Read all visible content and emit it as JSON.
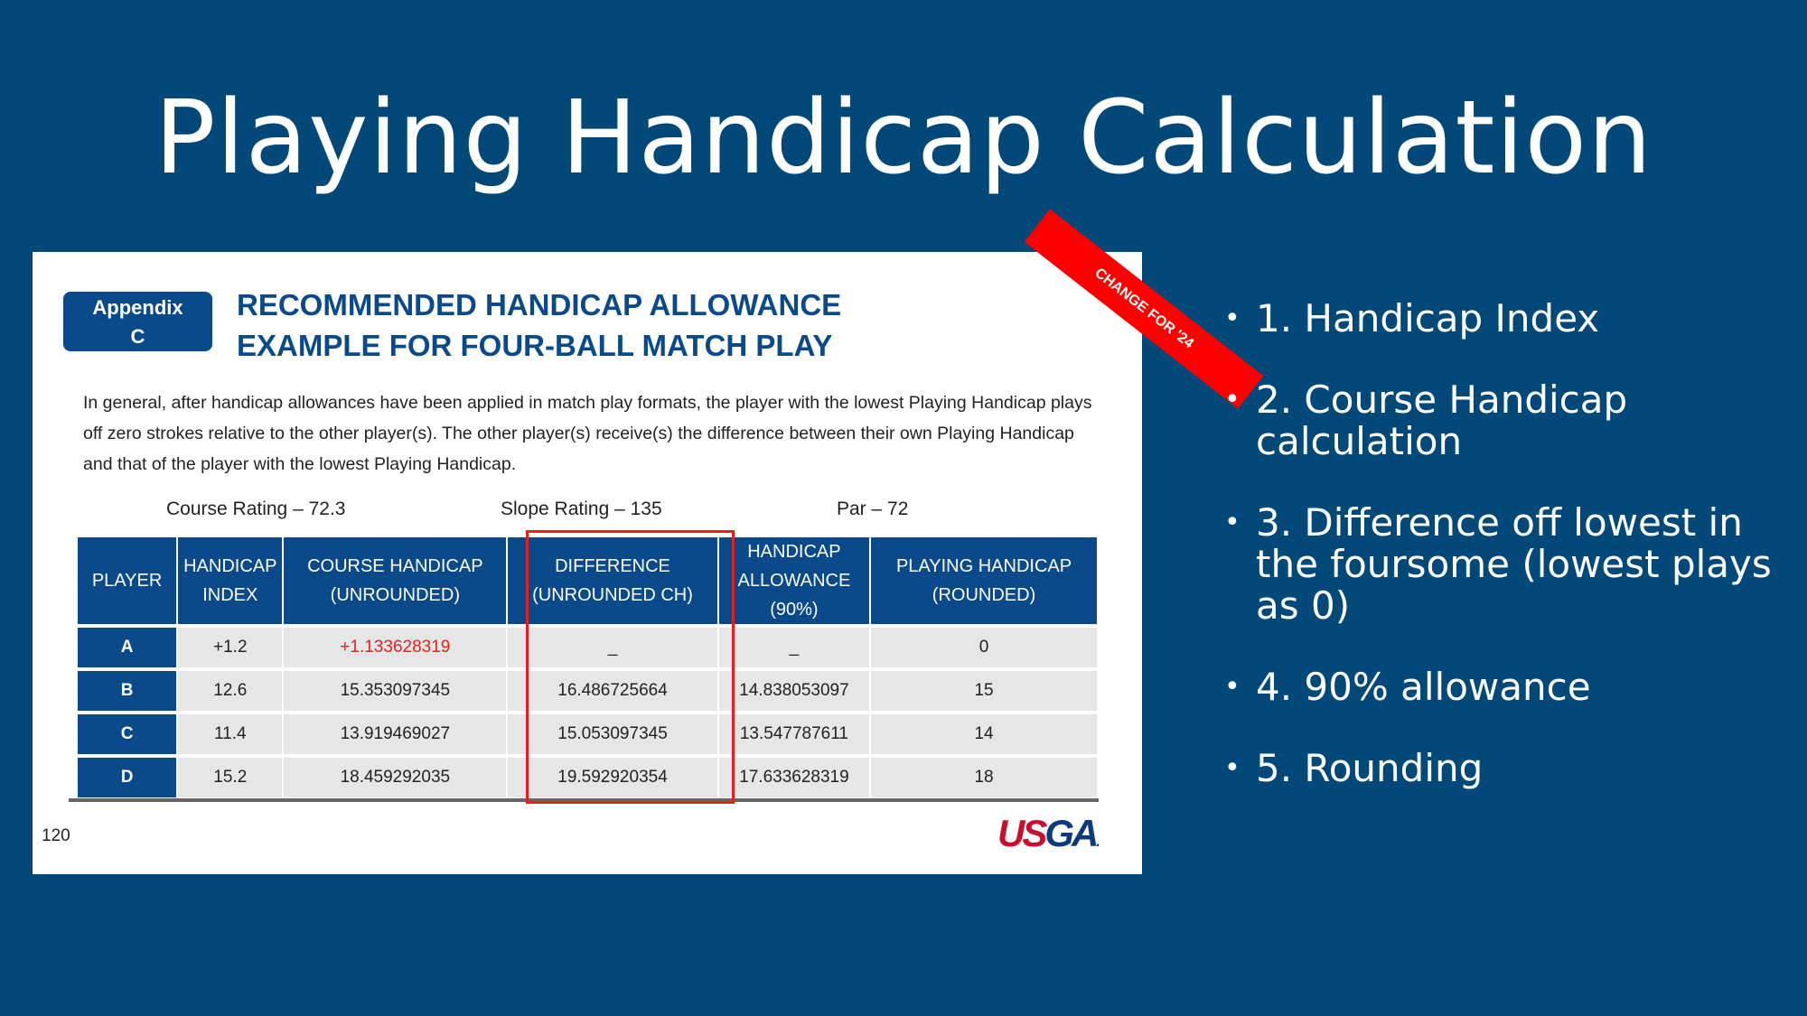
{
  "title": "Playing Handicap Calculation",
  "panel": {
    "ribbon": "CHANGE FOR '24",
    "appendix": [
      "Appendix",
      "C"
    ],
    "heading": [
      "RECOMMENDED HANDICAP ALLOWANCE",
      "EXAMPLE FOR FOUR-BALL MATCH PLAY"
    ],
    "intro": "In general, after handicap allowances have been applied in match play formats, the player with the lowest Playing Handicap plays off zero strokes relative to the other player(s).  The other player(s) receive(s) the difference between their own Playing Handicap and that of the player with the lowest Playing Handicap.",
    "course_rating": "Course Rating – 72.3",
    "slope_rating": "Slope Rating – 135",
    "par": "Par – 72",
    "headers": [
      [
        "PLAYER"
      ],
      [
        "HANDICAP",
        "INDEX"
      ],
      [
        "COURSE HANDICAP",
        "(UNROUNDED)"
      ],
      [
        "DIFFERENCE",
        "(UNROUNDED CH)"
      ],
      [
        "HANDICAP",
        "ALLOWANCE",
        "(90%)"
      ],
      [
        "PLAYING HANDICAP",
        "(ROUNDED)"
      ]
    ],
    "rows": [
      [
        "A",
        "+1.2",
        "+1.133628319",
        "_",
        "_",
        "0"
      ],
      [
        "B",
        "12.6",
        "15.353097345",
        "16.486725664",
        "14.838053097",
        "15"
      ],
      [
        "C",
        "11.4",
        "13.919469027",
        "15.053097345",
        "13.547787611",
        "14"
      ],
      [
        "D",
        "15.2",
        "18.459292035",
        "19.592920354",
        "17.633628319",
        "18"
      ]
    ],
    "page_number": "120",
    "logo": "USGA",
    "highlight_color": "#e52020"
  },
  "bullets": [
    "1. Handicap Index",
    "2. Course Handicap calculation",
    "3. Difference off lowest in the foursome (lowest plays as 0)",
    "4. 90% allowance",
    "5. Rounding"
  ]
}
